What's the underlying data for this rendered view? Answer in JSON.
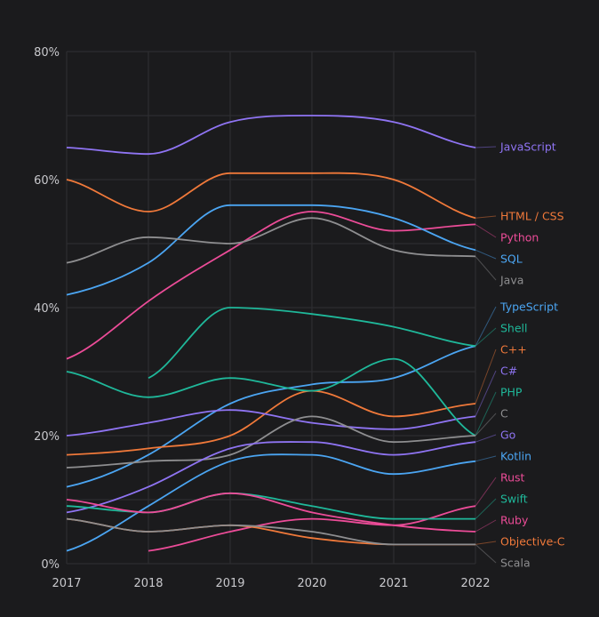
{
  "chart_data": {
    "type": "line",
    "title": "",
    "xlabel": "",
    "ylabel": "",
    "x": [
      "2017",
      "2018",
      "2019",
      "2020",
      "2021",
      "2022"
    ],
    "ylim": [
      0,
      80
    ],
    "yticks": [
      0,
      20,
      40,
      60,
      80
    ],
    "ytick_labels": [
      "0%",
      "20%",
      "40%",
      "60%",
      "80%"
    ],
    "grid": true,
    "legend": "right (direct labels)",
    "series": [
      {
        "name": "JavaScript",
        "color": "#8f74f3",
        "values": [
          65,
          64,
          69,
          70,
          69,
          65
        ]
      },
      {
        "name": "HTML / CSS",
        "color": "#f0793a",
        "values": [
          60,
          55,
          61,
          61,
          60,
          54
        ]
      },
      {
        "name": "Python",
        "color": "#ec4c98",
        "values": [
          32,
          41,
          49,
          55,
          52,
          53
        ]
      },
      {
        "name": "SQL",
        "color": "#4ba5f2",
        "values": [
          42,
          47,
          56,
          56,
          54,
          49
        ]
      },
      {
        "name": "Java",
        "color": "#8e8e90",
        "values": [
          47,
          51,
          50,
          54,
          49,
          48
        ]
      },
      {
        "name": "TypeScript",
        "color": "#4ba5f2",
        "values": [
          12,
          17,
          25,
          28,
          29,
          34
        ]
      },
      {
        "name": "Shell",
        "color": "#1fb89a",
        "values": [
          null,
          29,
          40,
          39,
          37,
          34
        ]
      },
      {
        "name": "C++",
        "color": "#f0793a",
        "values": [
          17,
          18,
          20,
          27,
          23,
          25
        ]
      },
      {
        "name": "C#",
        "color": "#8f74f3",
        "values": [
          20,
          22,
          24,
          22,
          21,
          23
        ]
      },
      {
        "name": "PHP",
        "color": "#1fb89a",
        "values": [
          30,
          26,
          29,
          27,
          32,
          20
        ]
      },
      {
        "name": "C",
        "color": "#8e8e90",
        "values": [
          15,
          16,
          17,
          23,
          19,
          20
        ]
      },
      {
        "name": "Go",
        "color": "#8f74f3",
        "values": [
          8,
          12,
          18,
          19,
          17,
          19
        ]
      },
      {
        "name": "Kotlin",
        "color": "#4ba5f2",
        "values": [
          2,
          9,
          16,
          17,
          14,
          16
        ]
      },
      {
        "name": "Rust",
        "color": "#ec4c98",
        "values": [
          null,
          2,
          5,
          7,
          6,
          9
        ]
      },
      {
        "name": "Swift",
        "color": "#1fb89a",
        "values": [
          9,
          8,
          11,
          9,
          7,
          7
        ]
      },
      {
        "name": "Ruby",
        "color": "#ec4c98",
        "values": [
          10,
          8,
          11,
          8,
          6,
          5
        ]
      },
      {
        "name": "Objective-C",
        "color": "#f0793a",
        "values": [
          7,
          5,
          6,
          4,
          3,
          3
        ]
      },
      {
        "name": "Scala",
        "color": "#8e8e90",
        "values": [
          7,
          5,
          6,
          5,
          3,
          3
        ]
      }
    ]
  }
}
